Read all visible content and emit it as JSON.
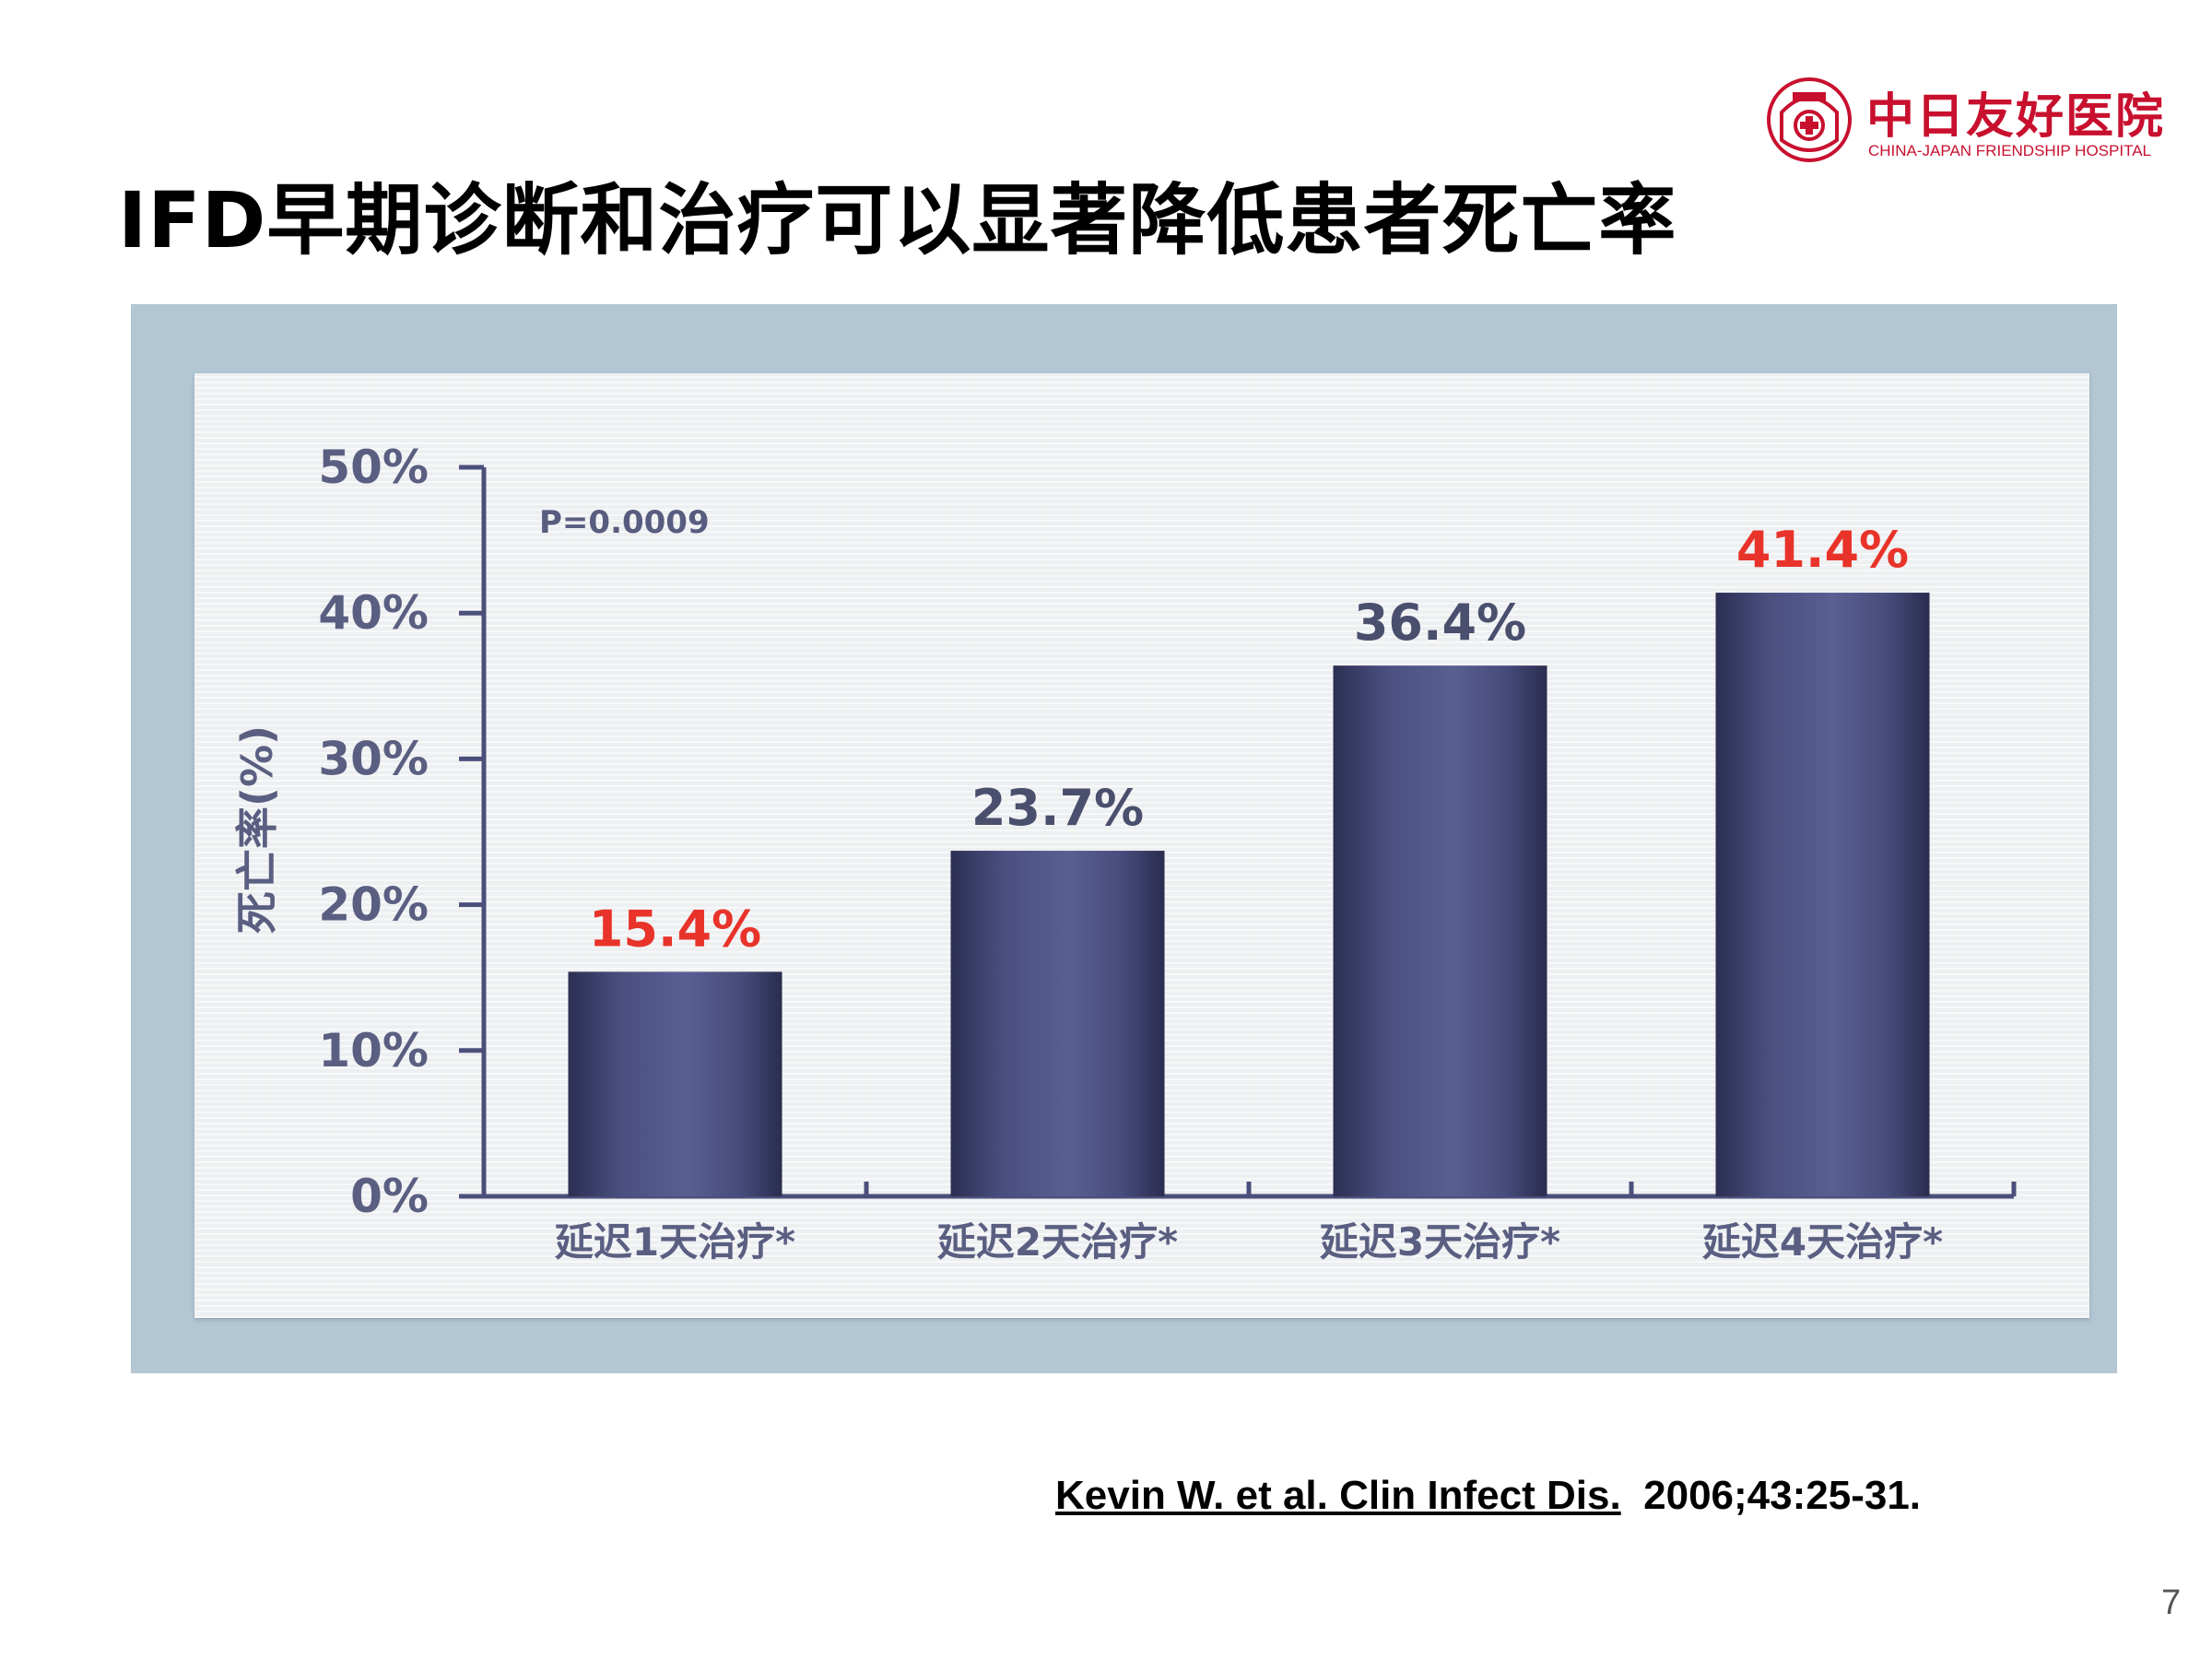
{
  "slide": {
    "title": "IFD早期诊断和治疗可以显著降低患者死亡率",
    "page_number": "7"
  },
  "logo": {
    "name_cn": "中日友好医院",
    "name_en": "CHINA-JAPAN FRIENDSHIP HOSPITAL"
  },
  "citation": {
    "linked": "Kevin  W. et al. Clin Infect Dis.",
    "rest": "2006;43:25-31."
  },
  "colors": {
    "bar": "#494e7e",
    "highlight_label": "#e8332a",
    "normal_label": "#4a4f6e",
    "axis": "#4a4f7a",
    "tick_label": "#5a5f82"
  },
  "chart_data": {
    "type": "bar",
    "categories": [
      "延迟1天治疗*",
      "延迟2天治疗*",
      "延迟3天治疗*",
      "延迟4天治疗*"
    ],
    "values": [
      15.4,
      23.7,
      36.4,
      41.4
    ],
    "data_labels": [
      "15.4%",
      "23.7%",
      "36.4%",
      "41.4%"
    ],
    "highlighted": [
      true,
      false,
      false,
      true
    ],
    "ylabel": "死亡率(%)",
    "xlabel": "",
    "ylim": [
      0,
      50
    ],
    "yticks": [
      0,
      10,
      20,
      30,
      40,
      50
    ],
    "ytick_labels": [
      "0%",
      "10%",
      "20%",
      "30%",
      "40%",
      "50%"
    ],
    "annotation": "P=0.0009",
    "grid": false,
    "legend": "none"
  }
}
